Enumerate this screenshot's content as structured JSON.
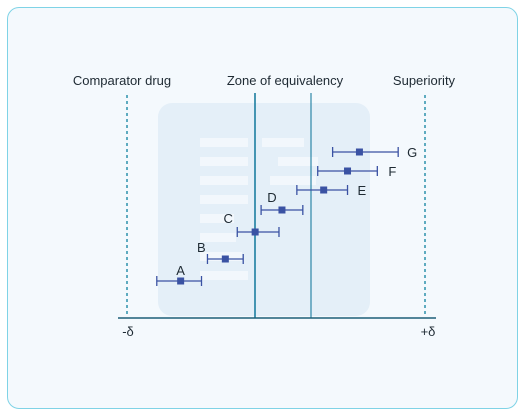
{
  "labels": {
    "left_region": "Comparator drug",
    "center_region": "Zone of equivalency",
    "right_region": "Superiority",
    "neg_delta": "-δ",
    "pos_delta": "+δ"
  },
  "chart_data": {
    "type": "scatter",
    "title": "",
    "xlabel": "",
    "ylabel": "",
    "x_ticks": [
      "-δ",
      "+δ"
    ],
    "region_labels": [
      "Comparator drug",
      "Zone of equivalency",
      "Superiority"
    ],
    "grid": false,
    "series": [
      {
        "points": [
          {
            "label": "A",
            "estimate": 0.18,
            "low": 0.1,
            "high": 0.25
          },
          {
            "label": "B",
            "estimate": 0.33,
            "low": 0.27,
            "high": 0.39
          },
          {
            "label": "C",
            "estimate": 0.43,
            "low": 0.37,
            "high": 0.51
          },
          {
            "label": "D",
            "estimate": 0.52,
            "low": 0.45,
            "high": 0.59
          },
          {
            "label": "E",
            "estimate": 0.66,
            "low": 0.57,
            "high": 0.74
          },
          {
            "label": "F",
            "estimate": 0.74,
            "low": 0.64,
            "high": 0.84
          },
          {
            "label": "G",
            "estimate": 0.78,
            "low": 0.69,
            "high": 0.91
          }
        ]
      }
    ]
  },
  "colors": {
    "border": "#7fd3e6",
    "background": "#f4f9fd",
    "accent": "#1c7ea0",
    "marker": "#3a52a3",
    "dashed": "#1f8aa5"
  }
}
